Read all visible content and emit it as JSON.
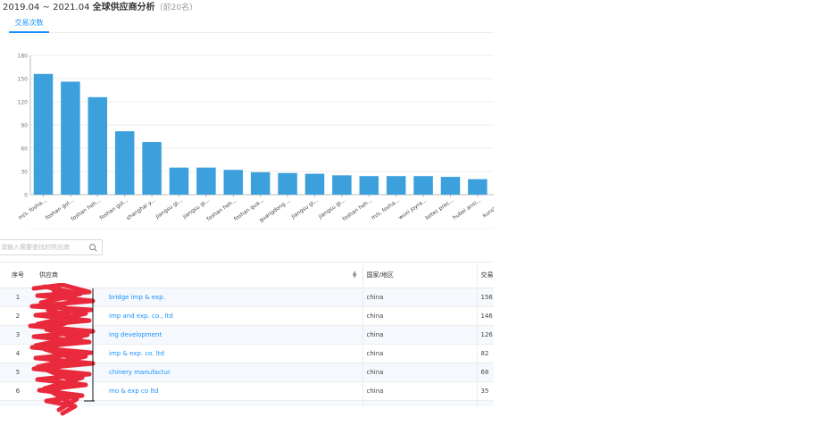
{
  "header": {
    "date_range": "2019.04 ~ 2021.04",
    "title": "全球供应商分析",
    "subtitle": "（前20名）"
  },
  "tabs": [
    {
      "label": "交易次数",
      "active": true
    }
  ],
  "colors": {
    "accent": "#1890ff",
    "bar": "#3ba0dc",
    "redaction": "#e8192c"
  },
  "chart_data": {
    "type": "bar",
    "categories": [
      "m/s. fosha...",
      "foshan gol...",
      "foshan heh...",
      "foshan gol...",
      "shanghai y...",
      "jiangsu gi...",
      "jiangsu gi...",
      "foshan heh...",
      "foshan gua...",
      "guangdong ...",
      "jiangsu gi...",
      "jiangsu gi...",
      "foshan heh...",
      "m/s. fosha...",
      "wuxi joyra...",
      "ketec prec...",
      "hubei ansi...",
      "kunshan ..."
    ],
    "values": [
      156,
      146,
      126,
      82,
      68,
      35,
      35,
      32,
      29,
      28,
      27,
      25,
      24,
      24,
      24,
      23,
      20,
      20
    ],
    "ylim": [
      0,
      180
    ],
    "yticks": [
      0,
      30,
      60,
      90,
      120,
      150,
      180
    ],
    "grid": true
  },
  "search": {
    "placeholder": "请输入需要查找的供应商",
    "value": ""
  },
  "table": {
    "columns": {
      "index": "序号",
      "supplier": "供应商",
      "country": "国家/地区",
      "count": "交易"
    },
    "rows": [
      {
        "index": "1",
        "supplier": "bridge imp & exp.",
        "country": "china",
        "count": "156"
      },
      {
        "index": "2",
        "supplier": "imp and exp. co., ltd",
        "country": "china",
        "count": "146"
      },
      {
        "index": "3",
        "supplier": "ing development",
        "country": "china",
        "count": "126"
      },
      {
        "index": "4",
        "supplier": "imp & exp. co. ltd",
        "country": "china",
        "count": "82"
      },
      {
        "index": "5",
        "supplier": "chinery manufactur",
        "country": "china",
        "count": "68"
      },
      {
        "index": "6",
        "supplier": "mo & exp co ltd",
        "country": "china",
        "count": "35"
      },
      {
        "index": "",
        "supplier": "",
        "country": "",
        "count": ""
      }
    ]
  }
}
